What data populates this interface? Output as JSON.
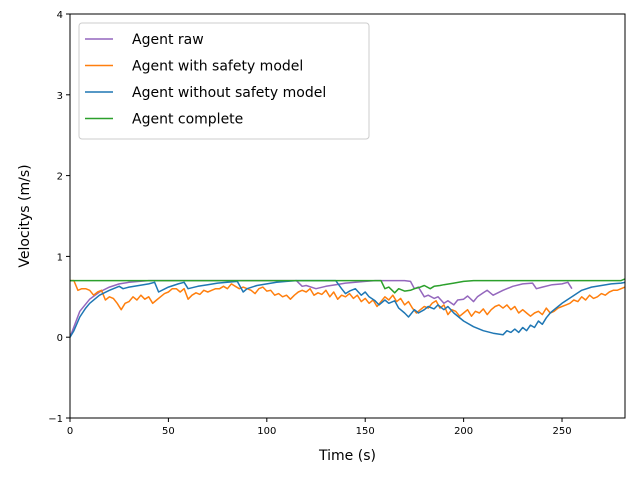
{
  "chart_data": {
    "type": "line",
    "title": "",
    "xlabel": "Time (s)",
    "ylabel": "Velocitys (m/s)",
    "xlim": [
      0,
      282
    ],
    "ylim": [
      -1,
      4
    ],
    "xticks": [
      0,
      50,
      100,
      150,
      200,
      250
    ],
    "yticks": [
      -1,
      0,
      1,
      2,
      3,
      4
    ],
    "grid": false,
    "legend_position": "top-left",
    "series": [
      {
        "name": "Agent raw",
        "color": "#9467bd",
        "x": [
          0,
          5,
          10,
          15,
          20,
          25,
          30,
          35,
          40,
          45,
          50,
          55,
          60,
          65,
          70,
          75,
          80,
          85,
          90,
          95,
          100,
          105,
          110,
          115,
          118,
          120,
          125,
          130,
          135,
          140,
          145,
          150,
          155,
          160,
          165,
          170,
          173,
          175,
          177,
          180,
          182,
          185,
          187,
          190,
          192,
          195,
          197,
          200,
          202,
          205,
          207,
          210,
          212,
          215,
          220,
          225,
          230,
          235,
          237,
          240,
          245,
          250,
          253,
          255
        ],
        "y": [
          0.0,
          0.32,
          0.47,
          0.56,
          0.62,
          0.66,
          0.68,
          0.69,
          0.7,
          0.7,
          0.7,
          0.7,
          0.7,
          0.7,
          0.7,
          0.7,
          0.7,
          0.7,
          0.7,
          0.7,
          0.7,
          0.7,
          0.7,
          0.7,
          0.63,
          0.64,
          0.6,
          0.63,
          0.65,
          0.67,
          0.68,
          0.69,
          0.7,
          0.7,
          0.7,
          0.7,
          0.69,
          0.6,
          0.62,
          0.5,
          0.52,
          0.48,
          0.5,
          0.42,
          0.45,
          0.4,
          0.46,
          0.47,
          0.51,
          0.44,
          0.5,
          0.55,
          0.58,
          0.52,
          0.58,
          0.63,
          0.66,
          0.67,
          0.6,
          0.62,
          0.65,
          0.66,
          0.68,
          0.6
        ]
      },
      {
        "name": "Agent with safety model",
        "color": "#ff7f0e",
        "x": [
          0,
          2,
          4,
          6,
          8,
          10,
          12,
          14,
          16,
          18,
          20,
          22,
          24,
          26,
          28,
          30,
          32,
          34,
          36,
          38,
          40,
          42,
          44,
          46,
          48,
          50,
          52,
          54,
          56,
          58,
          60,
          62,
          64,
          66,
          68,
          70,
          72,
          74,
          76,
          78,
          80,
          82,
          84,
          86,
          88,
          90,
          92,
          94,
          96,
          98,
          100,
          102,
          104,
          106,
          108,
          110,
          112,
          114,
          116,
          118,
          120,
          122,
          124,
          126,
          128,
          130,
          132,
          134,
          136,
          138,
          140,
          142,
          144,
          146,
          148,
          150,
          152,
          154,
          156,
          158,
          160,
          162,
          164,
          166,
          168,
          170,
          172,
          174,
          176,
          178,
          180,
          182,
          184,
          186,
          188,
          190,
          192,
          194,
          196,
          198,
          200,
          202,
          204,
          206,
          208,
          210,
          212,
          214,
          216,
          218,
          220,
          222,
          224,
          226,
          228,
          230,
          232,
          234,
          236,
          238,
          240,
          242,
          244,
          246,
          248,
          250,
          252,
          254,
          256,
          258,
          260,
          262,
          264,
          266,
          268,
          270,
          272,
          274,
          276,
          278,
          280,
          282
        ],
        "y": [
          0.7,
          0.7,
          0.58,
          0.6,
          0.6,
          0.58,
          0.52,
          0.56,
          0.58,
          0.46,
          0.5,
          0.48,
          0.42,
          0.34,
          0.42,
          0.44,
          0.5,
          0.46,
          0.52,
          0.47,
          0.5,
          0.42,
          0.46,
          0.5,
          0.54,
          0.56,
          0.6,
          0.6,
          0.56,
          0.6,
          0.47,
          0.52,
          0.55,
          0.53,
          0.58,
          0.56,
          0.58,
          0.6,
          0.6,
          0.63,
          0.6,
          0.66,
          0.63,
          0.6,
          0.62,
          0.6,
          0.58,
          0.54,
          0.6,
          0.62,
          0.57,
          0.58,
          0.52,
          0.54,
          0.5,
          0.52,
          0.47,
          0.52,
          0.56,
          0.58,
          0.56,
          0.6,
          0.52,
          0.55,
          0.53,
          0.58,
          0.5,
          0.56,
          0.47,
          0.52,
          0.5,
          0.54,
          0.48,
          0.52,
          0.44,
          0.48,
          0.42,
          0.46,
          0.38,
          0.44,
          0.5,
          0.46,
          0.52,
          0.44,
          0.48,
          0.4,
          0.44,
          0.36,
          0.3,
          0.34,
          0.38,
          0.36,
          0.42,
          0.45,
          0.36,
          0.4,
          0.28,
          0.34,
          0.32,
          0.26,
          0.3,
          0.34,
          0.26,
          0.32,
          0.3,
          0.35,
          0.28,
          0.34,
          0.38,
          0.4,
          0.36,
          0.4,
          0.34,
          0.38,
          0.3,
          0.34,
          0.3,
          0.26,
          0.3,
          0.32,
          0.28,
          0.36,
          0.3,
          0.32,
          0.36,
          0.38,
          0.4,
          0.42,
          0.46,
          0.44,
          0.5,
          0.46,
          0.52,
          0.48,
          0.5,
          0.54,
          0.52,
          0.56,
          0.58,
          0.58,
          0.6,
          0.62
        ]
      },
      {
        "name": "Agent without safety model",
        "color": "#1f77b4",
        "x": [
          0,
          2,
          5,
          8,
          10,
          15,
          20,
          25,
          27,
          30,
          35,
          40,
          43,
          45,
          50,
          55,
          58,
          60,
          65,
          70,
          75,
          80,
          85,
          88,
          90,
          95,
          100,
          105,
          110,
          115,
          120,
          125,
          130,
          135,
          138,
          140,
          142,
          145,
          148,
          150,
          152,
          155,
          157,
          160,
          162,
          165,
          167,
          170,
          172,
          175,
          177,
          180,
          182,
          185,
          187,
          190,
          192,
          195,
          200,
          205,
          210,
          215,
          220,
          222,
          224,
          226,
          228,
          230,
          232,
          234,
          236,
          238,
          240,
          242,
          244,
          246,
          248,
          250,
          255,
          260,
          265,
          270,
          275,
          280,
          282
        ],
        "y": [
          0.0,
          0.08,
          0.25,
          0.36,
          0.42,
          0.52,
          0.58,
          0.63,
          0.6,
          0.62,
          0.64,
          0.66,
          0.68,
          0.56,
          0.62,
          0.66,
          0.68,
          0.6,
          0.63,
          0.65,
          0.67,
          0.68,
          0.69,
          0.56,
          0.6,
          0.64,
          0.66,
          0.68,
          0.69,
          0.7,
          0.7,
          0.7,
          0.7,
          0.7,
          0.6,
          0.54,
          0.57,
          0.6,
          0.52,
          0.56,
          0.5,
          0.45,
          0.4,
          0.46,
          0.42,
          0.45,
          0.36,
          0.3,
          0.25,
          0.34,
          0.3,
          0.34,
          0.38,
          0.35,
          0.4,
          0.34,
          0.38,
          0.3,
          0.2,
          0.13,
          0.08,
          0.05,
          0.03,
          0.08,
          0.06,
          0.1,
          0.06,
          0.12,
          0.08,
          0.15,
          0.12,
          0.2,
          0.16,
          0.24,
          0.3,
          0.34,
          0.38,
          0.42,
          0.5,
          0.58,
          0.62,
          0.64,
          0.66,
          0.67,
          0.68
        ]
      },
      {
        "name": "Agent complete",
        "color": "#2ca02c",
        "x": [
          0,
          10,
          20,
          30,
          40,
          50,
          60,
          70,
          80,
          90,
          100,
          110,
          120,
          130,
          140,
          150,
          155,
          158,
          160,
          162,
          165,
          167,
          170,
          173,
          175,
          178,
          180,
          183,
          185,
          188,
          190,
          195,
          200,
          205,
          210,
          220,
          230,
          240,
          250,
          260,
          270,
          280,
          282
        ],
        "y": [
          0.7,
          0.7,
          0.7,
          0.7,
          0.7,
          0.7,
          0.7,
          0.7,
          0.7,
          0.7,
          0.7,
          0.7,
          0.7,
          0.7,
          0.7,
          0.7,
          0.7,
          0.7,
          0.6,
          0.62,
          0.55,
          0.6,
          0.57,
          0.58,
          0.6,
          0.62,
          0.64,
          0.6,
          0.63,
          0.64,
          0.65,
          0.67,
          0.69,
          0.7,
          0.7,
          0.7,
          0.7,
          0.7,
          0.7,
          0.7,
          0.7,
          0.7,
          0.72
        ]
      }
    ]
  }
}
